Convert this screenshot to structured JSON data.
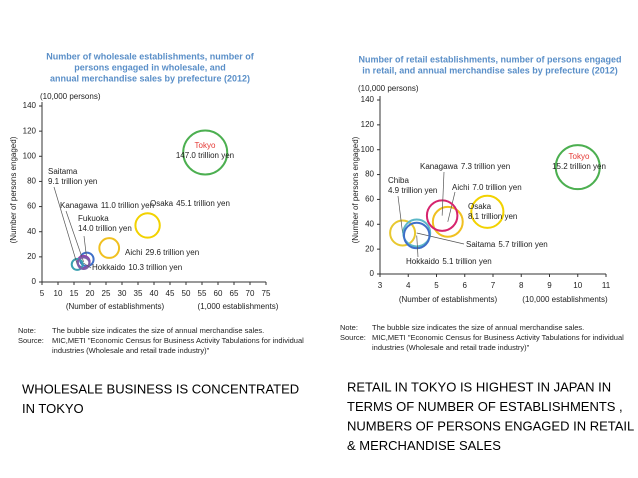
{
  "chart_data": [
    {
      "type": "bubble",
      "title": [
        "Number of wholesale establishments, number of",
        "persons engaged in wholesale, and",
        "annual merchandise sales by prefecture (2012)"
      ],
      "y_unit": "(10,000 persons)",
      "y_label": "(Number of persons engaged)",
      "x_label": "(Number of establishments)",
      "x_unit": "(1,000 establishments)",
      "names": [
        "Tokyo",
        "Osaka",
        "Aichi",
        "Fukuoka",
        "Kanagawa",
        "Saitama",
        "Hokkaido"
      ],
      "x": [
        56,
        38,
        26,
        19,
        18,
        16,
        18
      ],
      "y": [
        103,
        45,
        27,
        18,
        16,
        14,
        15
      ],
      "sizes": [
        147.0,
        45.1,
        29.6,
        14.0,
        11.0,
        9.1,
        10.3
      ],
      "value_labels": [
        "147.0 trillion yen",
        "45.1 trillion yen",
        "29.6 trillion yen",
        "14.0 trillion yen",
        "11.0 trillion yen",
        "9.1 trillion yen",
        "10.3 trillion yen"
      ],
      "colors": [
        "#4caf50",
        "#f2d200",
        "#f0c020",
        "#3f6fc8",
        "#8e44ad",
        "#3aa0b0",
        "#7b5ea7"
      ],
      "name_colors": [
        "#e53935",
        "#222",
        "#222",
        "#222",
        "#222",
        "#222",
        "#222"
      ],
      "xlim": [
        5,
        75
      ],
      "xticks": [
        5,
        10,
        15,
        20,
        25,
        30,
        35,
        40,
        45,
        50,
        55,
        60,
        65,
        70,
        75
      ],
      "ylim": [
        0,
        140
      ],
      "yticks": [
        0,
        20,
        40,
        60,
        80,
        100,
        120,
        140
      ],
      "note_label": "Note:",
      "note": "The bubble size indicates the size of annual merchandise sales.",
      "source_label": "Source:",
      "source": [
        "MIC,METI \"Economic Census for Business Activity Tabulations for individual",
        "industries (Wholesale and retail trade industry)\""
      ]
    },
    {
      "type": "bubble",
      "title": [
        "Number of retail establishments, number of persons engaged",
        "in retail, and annual merchandise sales by prefecture (2012)"
      ],
      "y_unit": "(10,000 persons)",
      "y_label": "(Number of persons engaged)",
      "x_label": "(Number of establishments)",
      "x_unit": "(10,000 establishments)",
      "names": [
        "Tokyo",
        "Osaka",
        "Aichi",
        "Kanagawa",
        "Chiba",
        "Saitama",
        "Hokkaido"
      ],
      "x": [
        10.0,
        6.8,
        5.4,
        5.2,
        3.8,
        4.3,
        4.3
      ],
      "y": [
        86,
        50,
        42,
        47,
        33,
        33,
        31
      ],
      "sizes": [
        15.2,
        8.1,
        7.0,
        7.3,
        4.9,
        5.7,
        5.1
      ],
      "value_labels": [
        "15.2 trillion yen",
        "8.1 trillion yen",
        "7.0 trillion yen",
        "7.3 trillion yen",
        "4.9 trillion yen",
        "5.7 trillion yen",
        "5.1 trillion yen"
      ],
      "colors": [
        "#4caf50",
        "#f2d200",
        "#f0c020",
        "#d6246e",
        "#e8c830",
        "#5cb8c8",
        "#3f6fc8"
      ],
      "name_colors": [
        "#e53935",
        "#222",
        "#222",
        "#222",
        "#222",
        "#222",
        "#222"
      ],
      "xlim": [
        3,
        11
      ],
      "xticks": [
        3,
        4,
        5,
        6,
        7,
        8,
        9,
        10,
        11
      ],
      "ylim": [
        0,
        140
      ],
      "yticks": [
        0,
        20,
        40,
        60,
        80,
        100,
        120,
        140
      ],
      "note_label": "Note:",
      "note": "The bubble size indicates the size of annual merchandise sales.",
      "source_label": "Source:",
      "source": [
        "MIC,METI \"Economic Census for Business Activity Tabulations for individual",
        "industries (Wholesale and retail trade industry)\""
      ]
    }
  ],
  "captions": [
    [
      "WHOLESALE BUSINESS IS CONCENTRATED",
      "IN TOKYO"
    ],
    [
      "RETAIL IN TOKYO IS HIGHEST IN JAPAN IN",
      "TERMS OF NUMBER OF ESTABLISHMENTS ,",
      "NUMBERS OF PERSONS ENGAGED IN RETAIL",
      "& MERCHANDISE SALES"
    ]
  ]
}
